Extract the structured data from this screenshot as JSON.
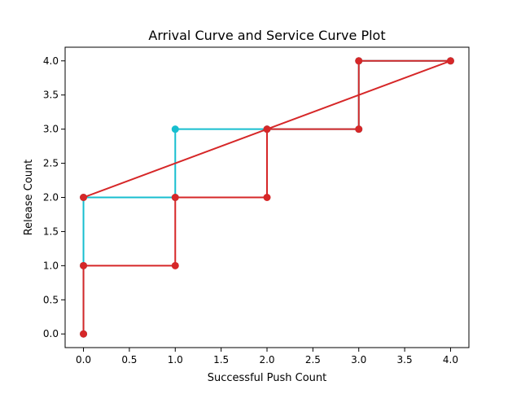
{
  "chart_data": {
    "type": "line",
    "title": "Arrival Curve and Service Curve Plot",
    "xlabel": "Successful Push Count",
    "ylabel": "Release Count",
    "xlim": [
      -0.2,
      4.2
    ],
    "ylim": [
      -0.2,
      4.2
    ],
    "xticks": [
      0.0,
      0.5,
      1.0,
      1.5,
      2.0,
      2.5,
      3.0,
      3.5,
      4.0
    ],
    "yticks": [
      0.0,
      0.5,
      1.0,
      1.5,
      2.0,
      2.5,
      3.0,
      3.5,
      4.0
    ],
    "xtick_labels": [
      "0.0",
      "0.5",
      "1.0",
      "1.5",
      "2.0",
      "2.5",
      "3.0",
      "3.5",
      "4.0"
    ],
    "ytick_labels": [
      "0.0",
      "0.5",
      "1.0",
      "1.5",
      "2.0",
      "2.5",
      "3.0",
      "3.5",
      "4.0"
    ],
    "grid": false,
    "legend": "none",
    "series": [
      {
        "color": "#17becf",
        "points": [
          [
            0,
            0
          ],
          [
            0,
            1
          ],
          [
            0,
            2
          ],
          [
            1,
            2
          ],
          [
            1,
            3
          ],
          [
            2,
            3
          ],
          [
            3,
            3
          ],
          [
            3,
            4
          ],
          [
            4,
            4
          ]
        ]
      },
      {
        "color": "#d62728",
        "points": [
          [
            0,
            0
          ],
          [
            0,
            1
          ],
          [
            1,
            1
          ],
          [
            1,
            2
          ],
          [
            2,
            2
          ],
          [
            2,
            3
          ],
          [
            3,
            3
          ],
          [
            3,
            4
          ],
          [
            4,
            4
          ],
          [
            0,
            2
          ]
        ]
      }
    ]
  }
}
